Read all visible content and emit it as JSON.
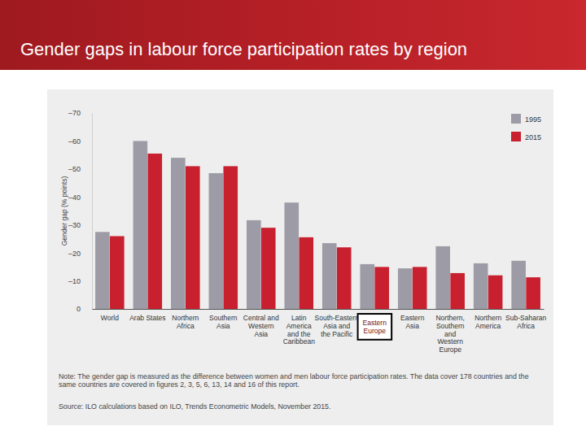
{
  "chart_data": {
    "type": "bar",
    "title": "Gender gaps in labour force participation rates by region",
    "ylabel": "Gender gap (% points)",
    "categories": [
      "World",
      "Arab States",
      "Northern Africa",
      "Southern Asia",
      "Central and Western Asia",
      "Latin America and the Caribbean",
      "South-Eastern Asia and the Pacific",
      null,
      "Eastern Asia",
      "Northern, Southern and Western Europe",
      "Northern America",
      "Sub-Saharan Africa"
    ],
    "series": [
      {
        "name": "1995",
        "color": "#9d9ca6",
        "values": [
          -27.5,
          -60,
          -54,
          -48.5,
          -31.7,
          -38,
          -23.5,
          -16,
          -14.5,
          -22.4,
          -16.3,
          -17.2
        ]
      },
      {
        "name": "2015",
        "color": "#c8202f",
        "values": [
          -26,
          -55.5,
          -51,
          -51,
          -29,
          -25.6,
          -22,
          -15,
          -15,
          -12.8,
          -12,
          -11.3
        ]
      }
    ],
    "ylim": [
      0,
      -70
    ],
    "yticks": [
      0,
      {
        "value": -10,
        "label": "–10"
      },
      {
        "value": -20,
        "label": "–20"
      },
      {
        "value": -30,
        "label": "–30"
      },
      {
        "value": -40,
        "label": "–40"
      },
      {
        "value": -50,
        "label": "–50"
      },
      {
        "value": -60,
        "label": "–60"
      },
      {
        "value": -70,
        "label": "–70"
      }
    ],
    "legend": "upper-right",
    "grid": false,
    "annotations": [
      {
        "text": "Eastern Europe",
        "x": 7
      }
    ],
    "note": "Note: The gender gap is measured as the difference between women and men labour force participation rates. The data cover 178 countries and the same countries are covered in figures 2, 3, 5, 6, 13, 14 and 16 of this report.",
    "source": "Source: ILO calculations based on ILO, Trends Econometric Models, November 2015."
  }
}
